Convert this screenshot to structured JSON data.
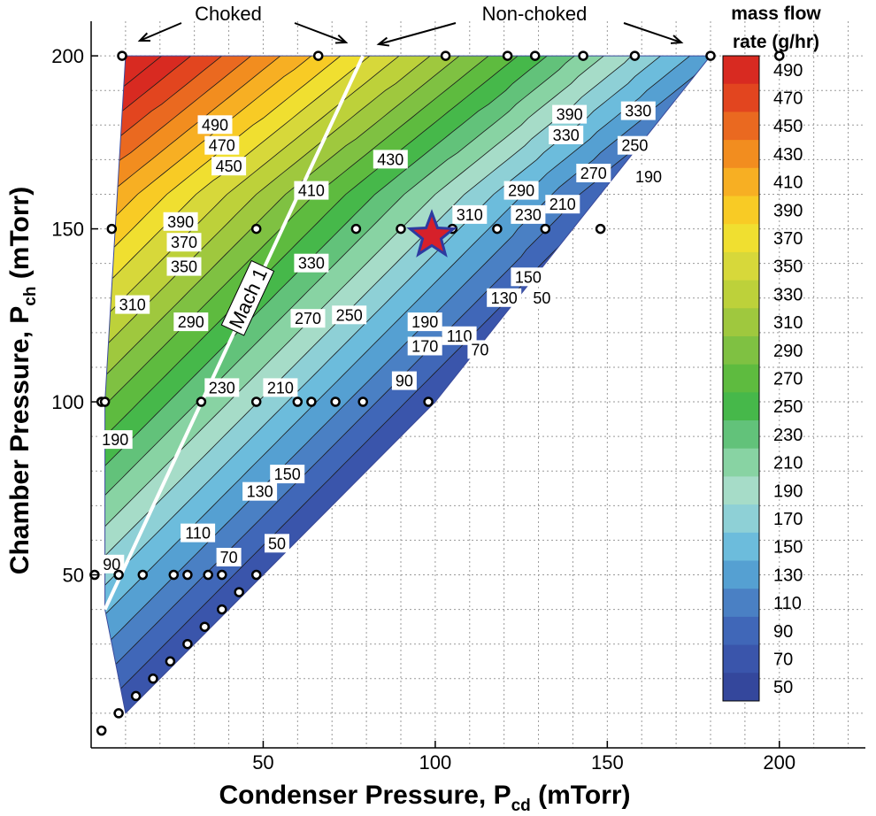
{
  "chart_data": {
    "type": "contour",
    "xlabel": "Condenser Pressure,  P",
    "xlabel_sub": "cd",
    "xlabel_unit": " (mTorr)",
    "ylabel": "Chamber Pressure, P",
    "ylabel_sub": "ch",
    "ylabel_unit": " (mTorr)",
    "xlim": [
      0,
      225
    ],
    "ylim": [
      0,
      210
    ],
    "xticks": [
      50,
      100,
      150,
      200
    ],
    "yticks": [
      50,
      100,
      150,
      200
    ],
    "grid": true,
    "legend_title": [
      "mass flow",
      "rate (g/hr)"
    ],
    "levels": [
      50,
      70,
      90,
      110,
      130,
      150,
      170,
      190,
      210,
      230,
      250,
      270,
      290,
      310,
      330,
      350,
      370,
      390,
      410,
      430,
      450,
      470,
      490
    ],
    "level_colors": [
      "#34479c",
      "#3a55ab",
      "#4067b8",
      "#4a80c4",
      "#55a0d2",
      "#6cbcdc",
      "#8ed0d6",
      "#a6dcc8",
      "#88d3a3",
      "#62c27a",
      "#46b84a",
      "#5ebb3f",
      "#7fc142",
      "#9fc83e",
      "#bdd13a",
      "#d7d83a",
      "#f0df30",
      "#f8cb25",
      "#f7af23",
      "#f28d1f",
      "#ea6920",
      "#e2451f",
      "#d82a21"
    ],
    "domain_boundary": [
      [
        10,
        200
      ],
      [
        79,
        200
      ],
      [
        180,
        200
      ],
      [
        100,
        100
      ],
      [
        10,
        10
      ],
      [
        4,
        40
      ],
      [
        4,
        50
      ],
      [
        4,
        100
      ],
      [
        7,
        150
      ],
      [
        10,
        200
      ]
    ],
    "contour_labels": [
      {
        "text": "490",
        "x": 36,
        "y": 180
      },
      {
        "text": "470",
        "x": 38,
        "y": 174
      },
      {
        "text": "450",
        "x": 40,
        "y": 168
      },
      {
        "text": "430",
        "x": 87,
        "y": 170
      },
      {
        "text": "410",
        "x": 64,
        "y": 161
      },
      {
        "text": "390",
        "x": 139,
        "y": 183
      },
      {
        "text": "330",
        "x": 159,
        "y": 184
      },
      {
        "text": "330",
        "x": 138,
        "y": 177
      },
      {
        "text": "250",
        "x": 158,
        "y": 174
      },
      {
        "text": "190",
        "x": 162,
        "y": 165
      },
      {
        "text": "270",
        "x": 146,
        "y": 166
      },
      {
        "text": "390",
        "x": 26,
        "y": 152
      },
      {
        "text": "370",
        "x": 27,
        "y": 146
      },
      {
        "text": "350",
        "x": 27,
        "y": 139
      },
      {
        "text": "330",
        "x": 64,
        "y": 140
      },
      {
        "text": "310",
        "x": 110,
        "y": 154
      },
      {
        "text": "290",
        "x": 125,
        "y": 161
      },
      {
        "text": "230",
        "x": 127,
        "y": 154
      },
      {
        "text": "210",
        "x": 137,
        "y": 157
      },
      {
        "text": "310",
        "x": 12,
        "y": 128
      },
      {
        "text": "290",
        "x": 29,
        "y": 123
      },
      {
        "text": "270",
        "x": 63,
        "y": 124
      },
      {
        "text": "250",
        "x": 75,
        "y": 125
      },
      {
        "text": "190",
        "x": 97,
        "y": 123
      },
      {
        "text": "170",
        "x": 97,
        "y": 116
      },
      {
        "text": "150",
        "x": 127,
        "y": 136
      },
      {
        "text": "130",
        "x": 120,
        "y": 130
      },
      {
        "text": "110",
        "x": 107,
        "y": 119
      },
      {
        "text": "70",
        "x": 113,
        "y": 115
      },
      {
        "text": "50",
        "x": 131,
        "y": 130
      },
      {
        "text": "230",
        "x": 38,
        "y": 104
      },
      {
        "text": "210",
        "x": 55,
        "y": 104
      },
      {
        "text": "90",
        "x": 91,
        "y": 106
      },
      {
        "text": "190",
        "x": 7,
        "y": 89
      },
      {
        "text": "150",
        "x": 57,
        "y": 79
      },
      {
        "text": "130",
        "x": 49,
        "y": 74
      },
      {
        "text": "110",
        "x": 31,
        "y": 62
      },
      {
        "text": "70",
        "x": 40,
        "y": 55
      },
      {
        "text": "50",
        "x": 54,
        "y": 59
      },
      {
        "text": "90",
        "x": 6,
        "y": 53
      }
    ],
    "sample_points": [
      [
        9,
        200
      ],
      [
        66,
        200
      ],
      [
        103,
        200
      ],
      [
        121,
        200
      ],
      [
        129,
        200
      ],
      [
        143,
        200
      ],
      [
        158,
        200
      ],
      [
        180,
        200
      ],
      [
        200,
        200
      ],
      [
        6,
        150
      ],
      [
        48,
        150
      ],
      [
        77,
        150
      ],
      [
        90,
        150
      ],
      [
        105,
        150
      ],
      [
        118,
        150
      ],
      [
        132,
        150
      ],
      [
        148,
        150
      ],
      [
        3,
        100
      ],
      [
        4,
        100
      ],
      [
        32,
        100
      ],
      [
        48,
        100
      ],
      [
        60,
        100
      ],
      [
        64,
        100
      ],
      [
        71,
        100
      ],
      [
        79,
        100
      ],
      [
        98,
        100
      ],
      [
        1,
        50
      ],
      [
        8,
        50
      ],
      [
        15,
        50
      ],
      [
        24,
        50
      ],
      [
        28,
        50
      ],
      [
        34,
        50
      ],
      [
        38,
        50
      ],
      [
        48,
        50
      ],
      [
        43,
        45
      ],
      [
        38,
        40
      ],
      [
        33,
        35
      ],
      [
        28,
        30
      ],
      [
        23,
        25
      ],
      [
        18,
        20
      ],
      [
        13,
        15
      ],
      [
        8,
        10
      ],
      [
        3,
        5
      ]
    ],
    "operating_point": {
      "x": 99,
      "y": 148
    },
    "mach_line": {
      "label": "Mach 1",
      "from": [
        4,
        40
      ],
      "to": [
        79,
        200
      ]
    },
    "annotations": [
      {
        "text": "Choked"
      },
      {
        "text": "Non-choked"
      }
    ]
  }
}
